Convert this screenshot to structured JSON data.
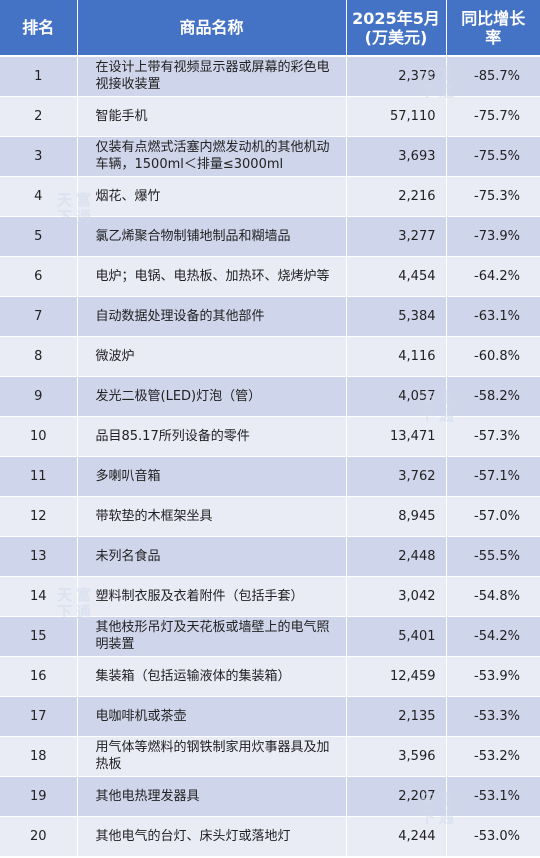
{
  "table": {
    "headers": {
      "rank": "排名",
      "name": "商品名称",
      "value_line1": "2025年5月",
      "value_line2": "(万美元)",
      "yoy_line1": "同比增长",
      "yoy_line2": "率"
    },
    "rows": [
      {
        "rank": "1",
        "name": "在设计上带有视频显示器或屏幕的彩色电视接收装置",
        "value": "2,379",
        "yoy": "-85.7%"
      },
      {
        "rank": "2",
        "name": "智能手机",
        "value": "57,110",
        "yoy": "-75.7%"
      },
      {
        "rank": "3",
        "name": "仅装有点燃式活塞内燃发动机的其他机动车辆，1500ml＜排量≤3000ml",
        "value": "3,693",
        "yoy": "-75.5%"
      },
      {
        "rank": "4",
        "name": "烟花、爆竹",
        "value": "2,216",
        "yoy": "-75.3%"
      },
      {
        "rank": "5",
        "name": "氯乙烯聚合物制铺地制品和糊墙品",
        "value": "3,277",
        "yoy": "-73.9%"
      },
      {
        "rank": "6",
        "name": "电炉；电锅、电热板、加热环、烧烤炉等",
        "value": "4,454",
        "yoy": "-64.2%"
      },
      {
        "rank": "7",
        "name": "自动数据处理设备的其他部件",
        "value": "5,384",
        "yoy": "-63.1%"
      },
      {
        "rank": "8",
        "name": "微波炉",
        "value": "4,116",
        "yoy": "-60.8%"
      },
      {
        "rank": "9",
        "name": "发光二极管(LED)灯泡（管）",
        "value": "4,057",
        "yoy": "-58.2%"
      },
      {
        "rank": "10",
        "name": "品目85.17所列设备的零件",
        "value": "13,471",
        "yoy": "-57.3%"
      },
      {
        "rank": "11",
        "name": "多喇叭音箱",
        "value": "3,762",
        "yoy": "-57.1%"
      },
      {
        "rank": "12",
        "name": "带软垫的木框架坐具",
        "value": "8,945",
        "yoy": "-57.0%"
      },
      {
        "rank": "13",
        "name": "未列名食品",
        "value": "2,448",
        "yoy": "-55.5%"
      },
      {
        "rank": "14",
        "name": "塑料制衣服及衣着附件（包括手套）",
        "value": "3,042",
        "yoy": "-54.8%"
      },
      {
        "rank": "15",
        "name": "其他枝形吊灯及天花板或墙壁上的电气照明装置",
        "value": "5,401",
        "yoy": "-54.2%"
      },
      {
        "rank": "16",
        "name": "集装箱（包括运输液体的集装箱）",
        "value": "12,459",
        "yoy": "-53.9%"
      },
      {
        "rank": "17",
        "name": "电咖啡机或茶壶",
        "value": "2,135",
        "yoy": "-53.3%"
      },
      {
        "rank": "18",
        "name": "用气体等燃料的钢铁制家用炊事器具及加热板",
        "value": "3,596",
        "yoy": "-53.2%"
      },
      {
        "rank": "19",
        "name": "其他电热理发器具",
        "value": "2,207",
        "yoy": "-53.1%"
      },
      {
        "rank": "20",
        "name": "其他电气的台灯、床头灯或落地灯",
        "value": "4,244",
        "yoy": "-53.0%"
      }
    ]
  },
  "watermark": {
    "chars": [
      "天",
      "富",
      "下",
      "通"
    ]
  }
}
